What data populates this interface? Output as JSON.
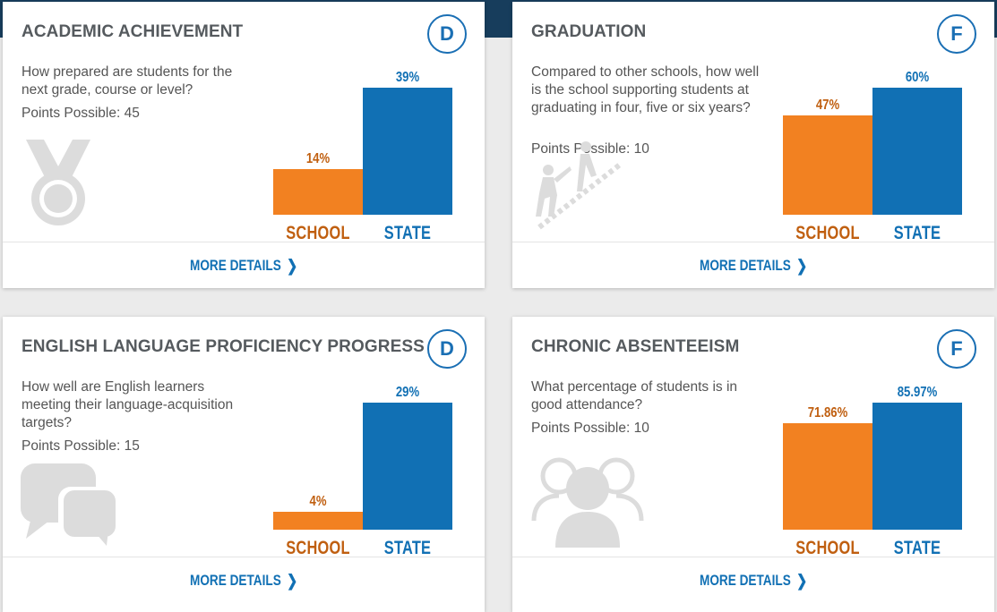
{
  "cards": [
    {
      "title": "ACADEMIC ACHIEVEMENT",
      "grade": "D",
      "description": "How prepared are students for the next grade, course or level?",
      "points": "Points Possible: 45",
      "icon": "medal-icon",
      "more": "MORE DETAILS",
      "chart_data": {
        "type": "bar",
        "categories": [
          "SCHOOL",
          "STATE"
        ],
        "values": [
          14,
          39
        ],
        "labels": [
          "14%",
          "39%"
        ],
        "ylim": [
          0,
          39
        ]
      }
    },
    {
      "title": "GRADUATION",
      "grade": "F",
      "description": "Compared to other schools, how well is the school supporting students at graduating in four, five or six years?",
      "points": "Points Possible: 10",
      "icon": "climbing-stairs-icon",
      "more": "MORE DETAILS",
      "chart_data": {
        "type": "bar",
        "categories": [
          "SCHOOL",
          "STATE"
        ],
        "values": [
          47,
          60
        ],
        "labels": [
          "47%",
          "60%"
        ],
        "ylim": [
          0,
          60
        ]
      }
    },
    {
      "title": "ENGLISH LANGUAGE PROFICIENCY PROGRESS",
      "grade": "D",
      "description": "How well are English learners meeting their language-acquisition targets?",
      "points": "Points Possible: 15",
      "icon": "speech-bubbles-icon",
      "more": "MORE DETAILS",
      "chart_data": {
        "type": "bar",
        "categories": [
          "SCHOOL",
          "STATE"
        ],
        "values": [
          4,
          29
        ],
        "labels": [
          "4%",
          "29%"
        ],
        "ylim": [
          0,
          29
        ]
      }
    },
    {
      "title": "CHRONIC ABSENTEEISM",
      "grade": "F",
      "description": "What percentage of students is in good attendance?",
      "points": "Points Possible: 10",
      "icon": "people-group-icon",
      "more": "MORE DETAILS",
      "chart_data": {
        "type": "bar",
        "categories": [
          "SCHOOL",
          "STATE"
        ],
        "values": [
          71.86,
          85.97
        ],
        "labels": [
          "71.86%",
          "85.97%"
        ],
        "ylim": [
          0,
          85.97
        ]
      }
    }
  ],
  "colors": {
    "school": "#f28121",
    "state": "#1170b4",
    "grade": "#1a6fb4"
  }
}
